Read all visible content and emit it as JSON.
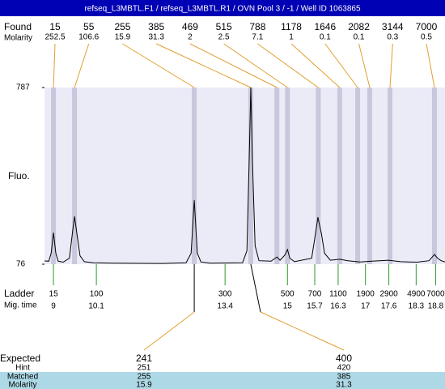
{
  "header": {
    "title": "refseq_L3MBTL.F1 / refseq_L3MBTL.R1 / OVN Pool 3 / -1 / Well ID 1063865"
  },
  "found": {
    "label": "Found",
    "molarity_label": "Molarity",
    "sizes": [
      15,
      55,
      255,
      385,
      469,
      515,
      788,
      1178,
      1646,
      2082,
      3144,
      7000
    ],
    "molarity": [
      252.5,
      106.6,
      15.9,
      31.3,
      2,
      2.5,
      7.1,
      1,
      0.1,
      0.1,
      0.3,
      0.5
    ],
    "times": [
      9,
      9.54,
      12.61,
      14.06,
      14.73,
      15,
      15.79,
      16.34,
      16.8,
      17.11,
      17.63,
      18.77
    ]
  },
  "plot": {
    "ylabel": "Fluo.",
    "ylim": [
      76,
      787
    ],
    "yticks": [
      76,
      787
    ],
    "xlim": [
      8.77,
      19.04
    ],
    "trace": {
      "x": [
        8.77,
        8.88,
        8.94,
        9,
        9.06,
        9.12,
        9.25,
        9.41,
        9.5,
        9.54,
        9.6,
        9.68,
        9.79,
        10.02,
        10.54,
        11.78,
        12.4,
        12.53,
        12.61,
        12.69,
        12.78,
        13.02,
        13.85,
        13.96,
        14.02,
        14.06,
        14.1,
        14.17,
        14.27,
        14.58,
        14.73,
        14.81,
        14.93,
        15,
        15.06,
        15.18,
        15.62,
        15.72,
        15.78,
        15.87,
        15.95,
        16.1,
        16.34,
        16.55,
        16.86,
        17.17,
        17.59,
        17.9,
        18.32,
        18.63,
        18.77,
        18.85,
        18.94,
        19.04
      ],
      "y": [
        89,
        88,
        120,
        203,
        120,
        88,
        84,
        100,
        220,
        268,
        200,
        110,
        86,
        82,
        80,
        79,
        82,
        120,
        334,
        120,
        85,
        80,
        82,
        130,
        500,
        787,
        500,
        150,
        90,
        88,
        105,
        92,
        112,
        135,
        100,
        86,
        100,
        200,
        265,
        200,
        120,
        92,
        96,
        90,
        85,
        88,
        92,
        86,
        84,
        90,
        115,
        100,
        90,
        85
      ]
    }
  },
  "ladder": {
    "label": "Ladder",
    "time_label": "Mig. time",
    "sizes": [
      15,
      100,
      300,
      500,
      700,
      1100,
      1900,
      2900,
      4900,
      7000
    ],
    "times": [
      9,
      10.1,
      13.4,
      15,
      15.7,
      16.3,
      17,
      17.6,
      18.3,
      18.8
    ]
  },
  "expected": {
    "label": "Expected",
    "hint_label": "Hint",
    "matched_label": "Matched",
    "molarity_label": "Molarity",
    "columns": [
      {
        "expected": 241,
        "hint": 251,
        "matched": 255,
        "molarity": 15.9
      },
      {
        "expected": 400,
        "hint": 420,
        "matched": 385,
        "molarity": 31.3
      }
    ]
  }
}
